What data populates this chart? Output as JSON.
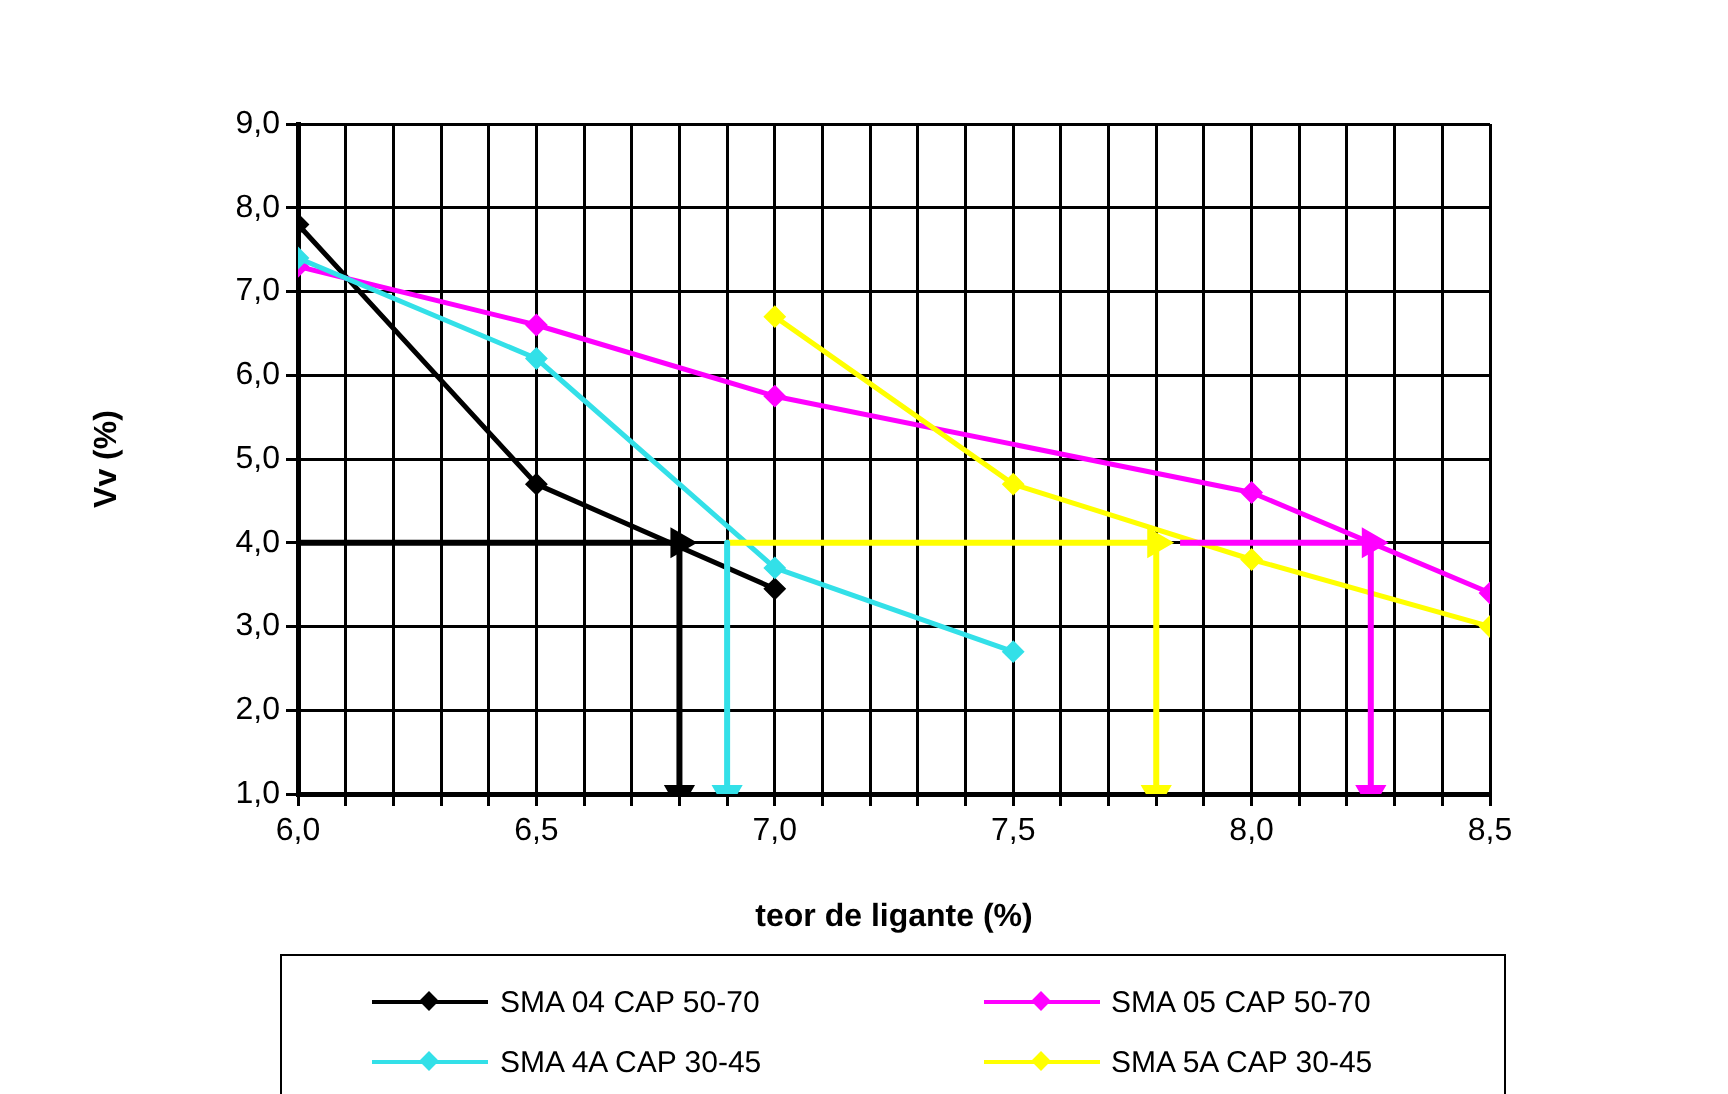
{
  "chart_data": {
    "type": "line",
    "xlabel": "teor de ligante (%)",
    "ylabel": "Vv (%)",
    "xlim": [
      6.0,
      8.5
    ],
    "xticks": [
      {
        "value": 6.0,
        "label": "6,0"
      },
      {
        "value": 6.1,
        "label": null
      },
      {
        "value": 6.2,
        "label": null
      },
      {
        "value": 6.3,
        "label": null
      },
      {
        "value": 6.4,
        "label": null
      },
      {
        "value": 6.5,
        "label": "6,5"
      },
      {
        "value": 6.6,
        "label": null
      },
      {
        "value": 6.7,
        "label": null
      },
      {
        "value": 6.8,
        "label": null
      },
      {
        "value": 6.9,
        "label": null
      },
      {
        "value": 7.0,
        "label": "7,0"
      },
      {
        "value": 7.1,
        "label": null
      },
      {
        "value": 7.2,
        "label": null
      },
      {
        "value": 7.3,
        "label": null
      },
      {
        "value": 7.4,
        "label": null
      },
      {
        "value": 7.5,
        "label": "7,5"
      },
      {
        "value": 7.6,
        "label": null
      },
      {
        "value": 7.7,
        "label": null
      },
      {
        "value": 7.8,
        "label": null
      },
      {
        "value": 7.9,
        "label": null
      },
      {
        "value": 8.0,
        "label": "8,0"
      },
      {
        "value": 8.1,
        "label": null
      },
      {
        "value": 8.2,
        "label": null
      },
      {
        "value": 8.3,
        "label": null
      },
      {
        "value": 8.4,
        "label": null
      },
      {
        "value": 8.5,
        "label": "8,5"
      }
    ],
    "ylim": [
      1.0,
      9.0
    ],
    "yticks": [
      {
        "value": 1,
        "label": "1,0"
      },
      {
        "value": 2,
        "label": "2,0"
      },
      {
        "value": 3,
        "label": "3,0"
      },
      {
        "value": 4,
        "label": "4,0"
      },
      {
        "value": 5,
        "label": "5,0"
      },
      {
        "value": 6,
        "label": "6,0"
      },
      {
        "value": 7,
        "label": "7,0"
      },
      {
        "value": 8,
        "label": "8,0"
      },
      {
        "value": 9,
        "label": "9,0"
      }
    ],
    "grid": true,
    "legend": "bottom",
    "marker": "diamond",
    "line_style": "solid",
    "series": [
      {
        "name": "SMA 04  CAP 50-70",
        "color": "#000000",
        "x": [
          6.0,
          6.5,
          7.0
        ],
        "values": [
          7.8,
          4.7,
          3.45
        ]
      },
      {
        "name": "SMA 05  CAP 50-70",
        "color": "#ff00ff",
        "x": [
          6.0,
          6.5,
          7.0,
          8.0,
          8.5
        ],
        "values": [
          7.3,
          6.6,
          5.75,
          4.6,
          3.4
        ]
      },
      {
        "name": "SMA 4A  CAP 30-45",
        "color": "#33e0e8",
        "x": [
          6.0,
          6.5,
          7.0,
          7.5
        ],
        "values": [
          7.4,
          6.2,
          3.7,
          2.7
        ]
      },
      {
        "name": "SMA 5A  CAP 30-45",
        "color": "#ffff00",
        "x": [
          7.0,
          7.5,
          8.0,
          8.5
        ],
        "values": [
          6.7,
          4.7,
          3.8,
          3.0
        ]
      },
      {
        "color": "#ff00ff",
        "x": [
          7.85,
          8.25,
          8.25
        ],
        "values": [
          4.0,
          4.0,
          1.0
        ],
        "marker": "triangle"
      },
      {
        "color": "#ffff00",
        "x": [
          6.9,
          7.8,
          7.8
        ],
        "values": [
          4.0,
          4.0,
          1.0
        ],
        "marker": "triangle"
      },
      {
        "color": "#33e0e8",
        "x": [
          6.9,
          6.9
        ],
        "values": [
          4.0,
          1.0
        ],
        "marker": "triangle"
      },
      {
        "color": "#000000",
        "x": [
          6.0,
          6.8,
          6.8
        ],
        "values": [
          4.0,
          4.0,
          1.0
        ],
        "marker": "triangle"
      }
    ]
  }
}
